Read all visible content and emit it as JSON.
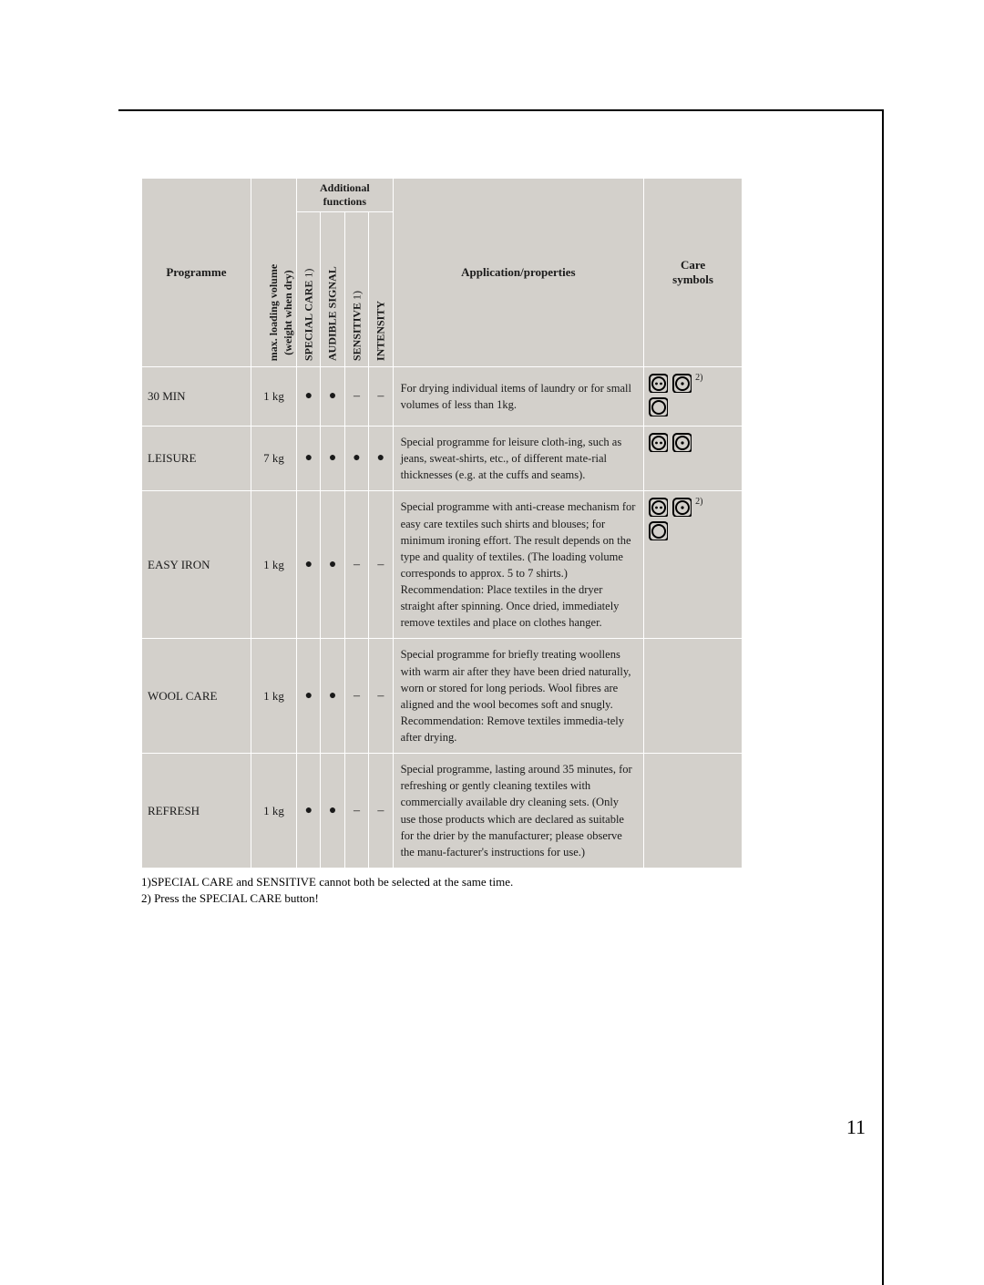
{
  "headers": {
    "programme": "Programme",
    "max_loading": "max. loading volume\n(weight when dry)",
    "additional_functions": "Additional\nfunctions",
    "special_care": "SPECIAL CARE 1)",
    "audible_signal": "AUDIBLE SIGNAL",
    "sensitive": "SENSITIVE  1)",
    "intensity": "INTENSITY",
    "application": "Application/properties",
    "care_symbols": "Care\nsymbols"
  },
  "rows": [
    {
      "name": "30 MIN",
      "weight": "1 kg",
      "special_care": "●",
      "audible_signal": "●",
      "sensitive": "–",
      "intensity": "–",
      "desc": "For drying individual items of laundry or for small volumes of less than 1kg.",
      "care": {
        "icons": [
          "two-dot",
          "one-dot",
          "circle"
        ],
        "note_ref": "2)"
      }
    },
    {
      "name": "LEISURE",
      "weight": "7 kg",
      "special_care": "●",
      "audible_signal": "●",
      "sensitive": "●",
      "intensity": "●",
      "desc": "Special programme for leisure cloth-ing, such as jeans, sweat-shirts, etc., of different mate-rial thicknesses (e.g. at the cuffs and seams).",
      "care": {
        "icons": [
          "two-dot",
          "one-dot"
        ],
        "note_ref": ""
      }
    },
    {
      "name": "EASY IRON",
      "weight": "1 kg",
      "special_care": "●",
      "audible_signal": "●",
      "sensitive": "–",
      "intensity": "–",
      "desc": "Special programme with anti-crease mechanism for easy care textiles such shirts and blouses; for minimum ironing effort. The result depends on the type and quality of textiles. (The loading volume corresponds to approx. 5 to 7 shirts.)\nRecommendation: Place textiles in the dryer straight after spinning. Once dried, immediately remove textiles and place on clothes hanger.",
      "care": {
        "icons": [
          "two-dot",
          "one-dot",
          "circle"
        ],
        "note_ref": "2)"
      }
    },
    {
      "name": "WOOL CARE",
      "weight": "1 kg",
      "special_care": "●",
      "audible_signal": "●",
      "sensitive": "–",
      "intensity": "–",
      "desc": "Special programme for briefly treating woollens with warm air after they have been dried naturally, worn or stored for long periods. Wool fibres are aligned and the wool becomes soft and snugly.\nRecommendation: Remove textiles immedia-tely after drying.",
      "care": {
        "icons": [],
        "note_ref": ""
      }
    },
    {
      "name": "REFRESH",
      "weight": "1 kg",
      "special_care": "●",
      "audible_signal": "●",
      "sensitive": "–",
      "intensity": "–",
      "desc": "Special programme, lasting around 35 minutes, for refreshing or gently cleaning textiles with commercially available dry cleaning sets. (Only use those products which are declared as suitable for the drier by the manufacturer; please observe the manu-facturer's instructions for use.)",
      "care": {
        "icons": [],
        "note_ref": ""
      }
    }
  ],
  "footnotes": [
    "1)SPECIAL CARE and SENSITIVE cannot both be selected at the same time.",
    "2) Press the SPECIAL CARE button!"
  ],
  "page_number": "11",
  "colors": {
    "cell_bg": "#d3d0cb",
    "border": "#ffffff",
    "text": "#1a1a1a"
  }
}
